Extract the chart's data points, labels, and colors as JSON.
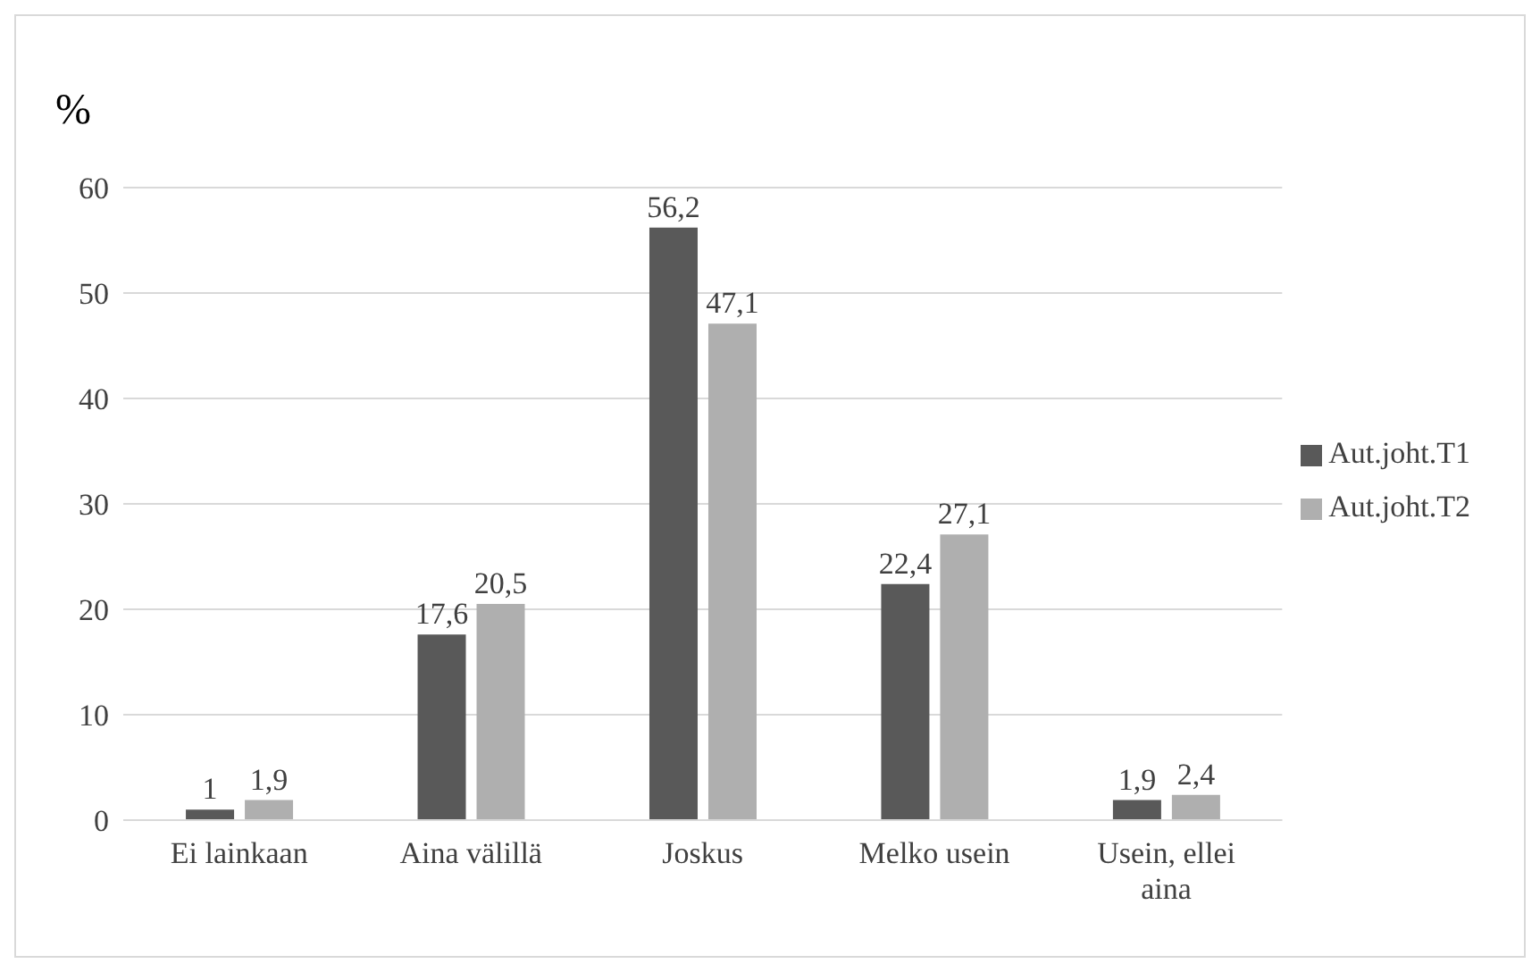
{
  "chart_data": {
    "type": "bar",
    "ylabel": "%",
    "categories": [
      "Ei lainkaan",
      "Aina välillä",
      "Joskus",
      "Melko usein",
      "Usein, ellei aina"
    ],
    "series": [
      {
        "name": "Aut.joht.T1",
        "color": "#595959",
        "values": [
          1,
          17.6,
          56.2,
          22.4,
          1.9
        ],
        "value_labels": [
          "1",
          "17,6",
          "56,2",
          "22,4",
          "1,9"
        ]
      },
      {
        "name": "Aut.joht.T2",
        "color": "#afafaf",
        "values": [
          1.9,
          20.5,
          47.1,
          27.1,
          2.4
        ],
        "value_labels": [
          "1,9",
          "20,5",
          "47,1",
          "27,1",
          "2,4"
        ]
      }
    ],
    "ylim": [
      0,
      60
    ],
    "yticks": [
      0,
      10,
      20,
      30,
      40,
      50,
      60
    ],
    "grid": "y",
    "legend": "right"
  }
}
